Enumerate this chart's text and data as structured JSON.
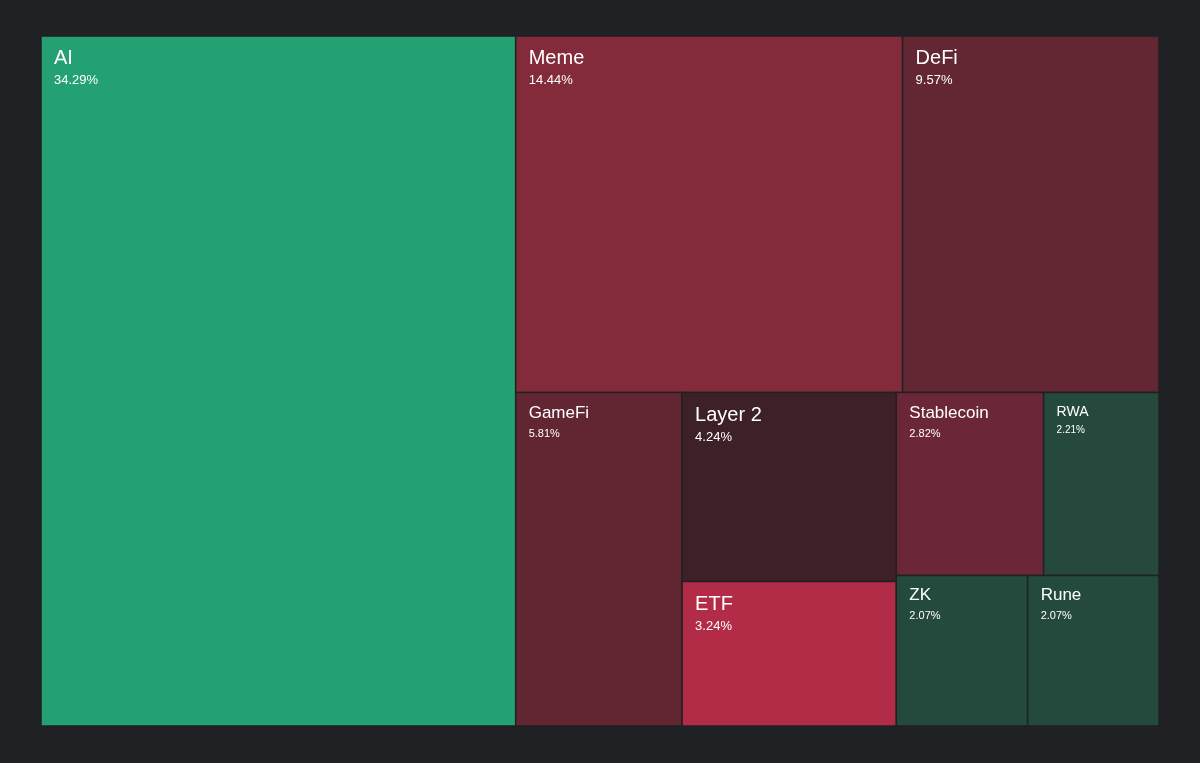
{
  "chart_data": {
    "type": "other",
    "categories": [
      "AI",
      "Meme",
      "DeFi",
      "GameFi",
      "Layer 2",
      "ETF",
      "Stablecoin",
      "RWA",
      "ZK",
      "Rune"
    ],
    "values": [
      34.29,
      14.44,
      9.57,
      5.81,
      4.24,
      3.24,
      2.82,
      2.21,
      2.07,
      2.07
    ],
    "value_labels": [
      "34.29%",
      "14.44%",
      "9.57%",
      "5.81%",
      "4.24%",
      "3.24%",
      "2.82%",
      "2.21%",
      "2.07%",
      "2.07%"
    ],
    "colors": [
      "#23a172",
      "#832b3b",
      "#632734",
      "#622633",
      "#3e2128",
      "#b22c47",
      "#6b2737",
      "#25493d",
      "#244a3d",
      "#244a3d"
    ]
  }
}
